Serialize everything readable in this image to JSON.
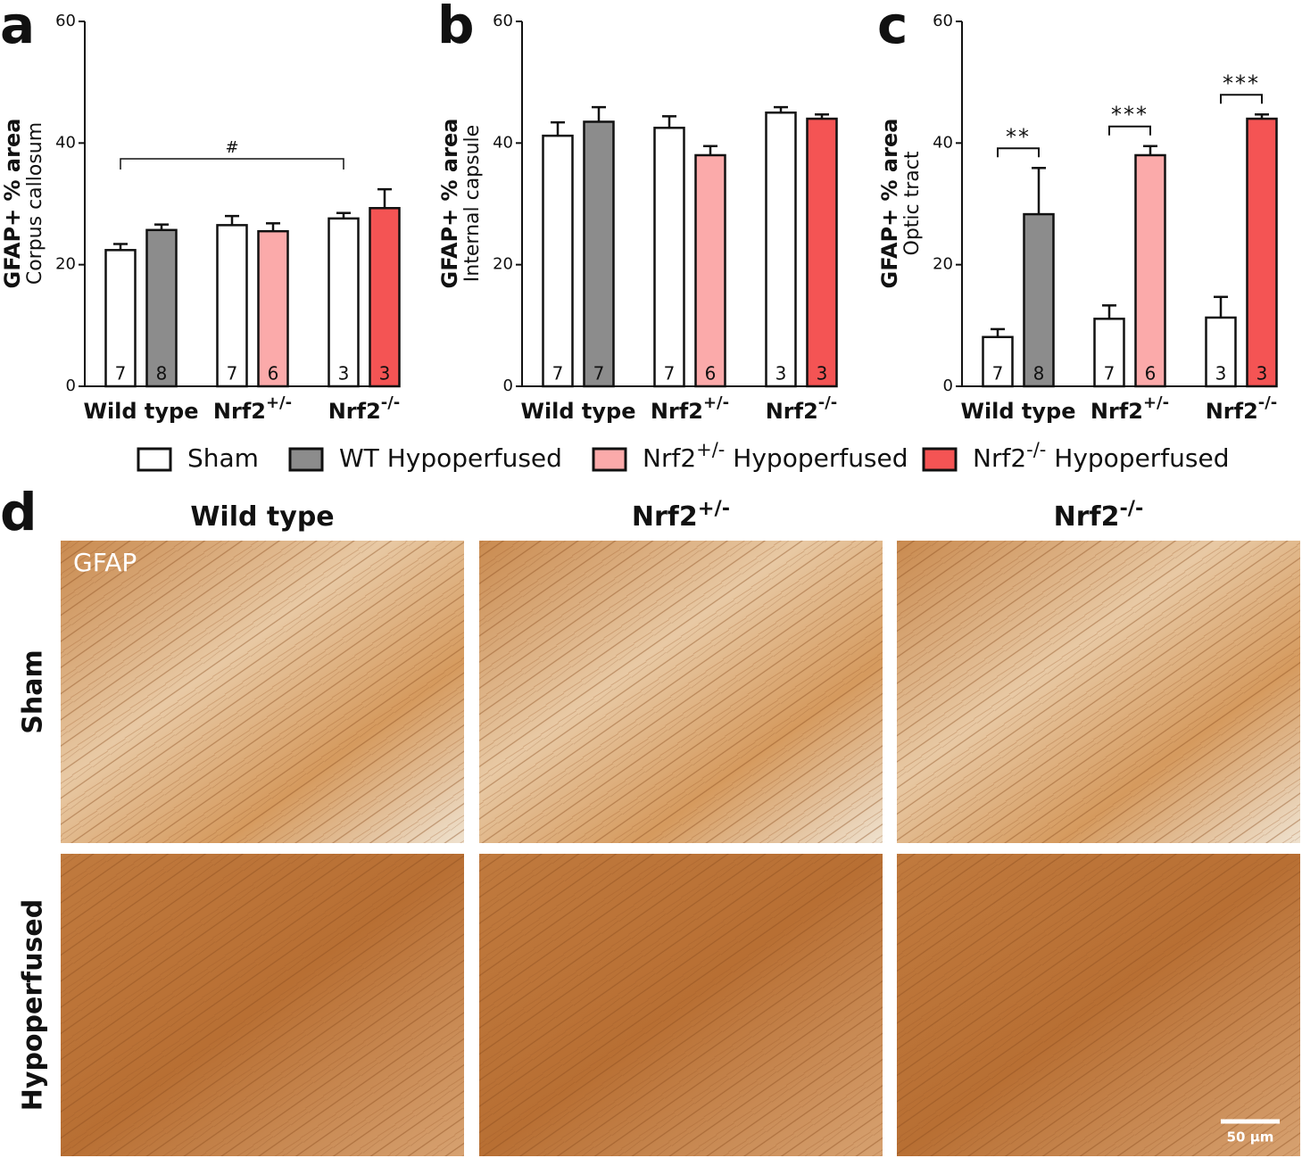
{
  "chart_data": [
    {
      "type": "bar",
      "panel": "a",
      "ylabel": "GFAP+ % area",
      "ylabel2": "Corpus callosum",
      "categories": [
        {
          "label": "Wild type"
        },
        {
          "label": "Nrf2",
          "sup": "+/-"
        },
        {
          "label": "Nrf2",
          "sup": "-/-"
        }
      ],
      "ylim": [
        0,
        60
      ],
      "yticks": [
        0,
        20,
        40,
        60
      ],
      "bracket_label": "#",
      "series": [
        {
          "color": "#ffffff",
          "values": [
            22.4,
            26.5,
            27.6
          ],
          "errors": [
            1.0,
            1.5,
            0.9
          ],
          "n": [
            7,
            7,
            3
          ]
        },
        {
          "color": "#8c8c8c",
          "values": [
            25.7,
            null,
            null
          ],
          "errors": [
            0.9,
            null,
            null
          ],
          "n": [
            8,
            null,
            null
          ]
        },
        {
          "color": "#fbaaaa",
          "values": [
            null,
            25.5,
            null
          ],
          "errors": [
            null,
            1.3,
            null
          ],
          "n": [
            null,
            6,
            null
          ]
        },
        {
          "color": "#f45454",
          "values": [
            null,
            null,
            29.3
          ],
          "errors": [
            null,
            null,
            3.1
          ],
          "n": [
            null,
            null,
            3
          ]
        }
      ]
    },
    {
      "type": "bar",
      "panel": "b",
      "ylabel": "GFAP+ % area",
      "ylabel2": "Internal capsule",
      "categories": [
        {
          "label": "Wild type"
        },
        {
          "label": "Nrf2",
          "sup": "+/-"
        },
        {
          "label": "Nrf2",
          "sup": "-/-"
        }
      ],
      "ylim": [
        0,
        60
      ],
      "yticks": [
        0,
        20,
        40,
        60
      ],
      "series": [
        {
          "color": "#ffffff",
          "values": [
            41.2,
            42.5,
            45.0
          ],
          "errors": [
            2.2,
            1.9,
            0.9
          ],
          "n": [
            7,
            7,
            3
          ]
        },
        {
          "color": "#8c8c8c",
          "values": [
            43.5,
            null,
            null
          ],
          "errors": [
            2.4,
            null,
            null
          ],
          "n": [
            7,
            null,
            null
          ]
        },
        {
          "color": "#fbaaaa",
          "values": [
            null,
            38.0,
            null
          ],
          "errors": [
            null,
            1.5,
            null
          ],
          "n": [
            null,
            6,
            null
          ]
        },
        {
          "color": "#f45454",
          "values": [
            null,
            null,
            44.0
          ],
          "errors": [
            null,
            null,
            0.7
          ],
          "n": [
            null,
            null,
            3
          ]
        }
      ]
    },
    {
      "type": "bar",
      "panel": "c",
      "ylabel": "GFAP+ % area",
      "ylabel2": "Optic tract",
      "categories": [
        {
          "label": "Wild type"
        },
        {
          "label": "Nrf2",
          "sup": "+/-"
        },
        {
          "label": "Nrf2",
          "sup": "-/-"
        }
      ],
      "ylim": [
        0,
        60
      ],
      "yticks": [
        0,
        20,
        40,
        60
      ],
      "significance": [
        "**",
        "***",
        "***"
      ],
      "series": [
        {
          "color": "#ffffff",
          "values": [
            8.1,
            11.1,
            11.3
          ],
          "errors": [
            1.3,
            2.2,
            3.4
          ],
          "n": [
            7,
            7,
            3
          ]
        },
        {
          "color": "#8c8c8c",
          "values": [
            28.3,
            null,
            null
          ],
          "errors": [
            7.6,
            null,
            null
          ],
          "n": [
            8,
            null,
            null
          ]
        },
        {
          "color": "#fbaaaa",
          "values": [
            null,
            38.0,
            null
          ],
          "errors": [
            null,
            1.5,
            null
          ],
          "n": [
            null,
            6,
            null
          ]
        },
        {
          "color": "#f45454",
          "values": [
            null,
            null,
            44.0
          ],
          "errors": [
            null,
            null,
            0.7
          ],
          "n": [
            null,
            null,
            3
          ]
        }
      ]
    }
  ],
  "legend": [
    {
      "label": "Sham",
      "color": "#ffffff"
    },
    {
      "label": "WT Hypoperfused",
      "color": "#8c8c8c"
    },
    {
      "label": "Nrf2",
      "sup": "+/-",
      "rest": " Hypoperfused",
      "color": "#fbaaaa"
    },
    {
      "label": "Nrf2",
      "sup": "-/-",
      "rest": " Hypoperfused",
      "color": "#f45454"
    }
  ],
  "micrographs": {
    "panel": "d",
    "columns": [
      {
        "label": "Wild type"
      },
      {
        "label": "Nrf2",
        "sup": "+/-"
      },
      {
        "label": "Nrf2",
        "sup": "-/-"
      }
    ],
    "rows": [
      "Sham",
      "Hypoperfused"
    ],
    "stain": "GFAP",
    "scale_bar": "50 µm"
  }
}
